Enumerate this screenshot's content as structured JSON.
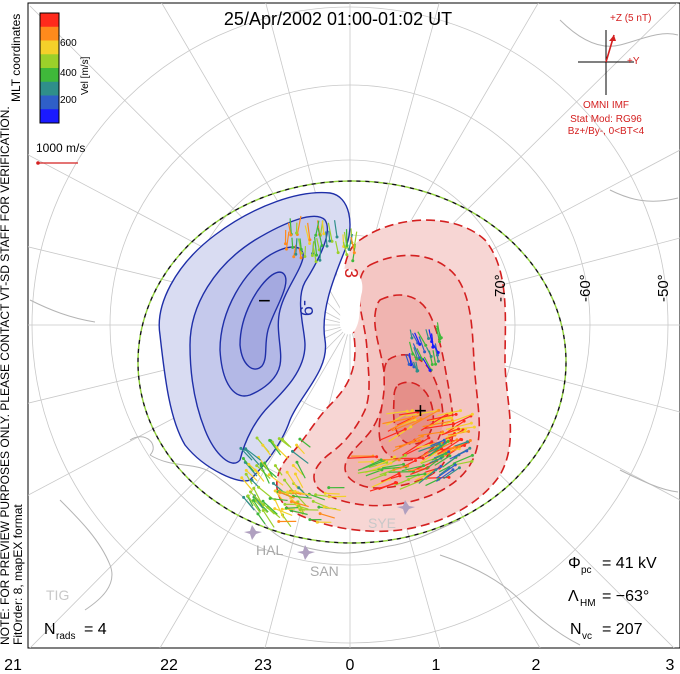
{
  "title": "25/Apr/2002 01:00-01:02 UT",
  "colorbar": {
    "title": "Vel [m/s]",
    "ticks": [
      "600",
      "400",
      "200"
    ],
    "colors": [
      "#ff2a1c",
      "#ff8a1c",
      "#f4d02a",
      "#9bd02a",
      "#3fb83a",
      "#2f8f8a",
      "#2f5fc8",
      "#1a1aff"
    ]
  },
  "coordinates_label": "MLT coordinates",
  "velocity_scale": "1000 m/s",
  "note_line1": "NOTE: FOR PREVIEW PURPOSES ONLY. PLEASE CONTACT VT-SD STAFF FOR VERIFICATION.",
  "note_line2": "FitOrder: 8, mapEX format",
  "imf": {
    "bz_label": "+Z (5 nT)",
    "by_label": "+Y",
    "title": "OMNI IMF",
    "stat_mod": "Stat Mod: RG96",
    "condition": "Bz+/By-, 0<BT<4"
  },
  "latitude_labels": [
    "-70°",
    "-60°",
    "-50°"
  ],
  "contour_labels": [
    "-9",
    "3"
  ],
  "extrema_markers": [
    "−",
    "+"
  ],
  "mlt_labels": [
    "21",
    "22",
    "23",
    "0",
    "1",
    "2",
    "3"
  ],
  "stations": [
    "HAL",
    "SAN",
    "SYE",
    "TIG"
  ],
  "stats": {
    "phi_symbol": "Φ",
    "phi_sub": "pc",
    "phi_value": "= 41 kV",
    "lambda_symbol": "Λ",
    "lambda_sub": "HM",
    "lambda_value": "= −63°",
    "nvc_symbol": "N",
    "nvc_sub": "vc",
    "nvc_value": "= 207",
    "nrads_symbol": "N",
    "nrads_sub": "rads",
    "nrads_value": "= 4"
  },
  "colors": {
    "negative_contour": "#1f2fa8",
    "negative_fill": "#d9dcf2",
    "positive_contour": "#d42020",
    "positive_fill": "#f7d6d4",
    "boundary": "#8fd03a"
  }
}
